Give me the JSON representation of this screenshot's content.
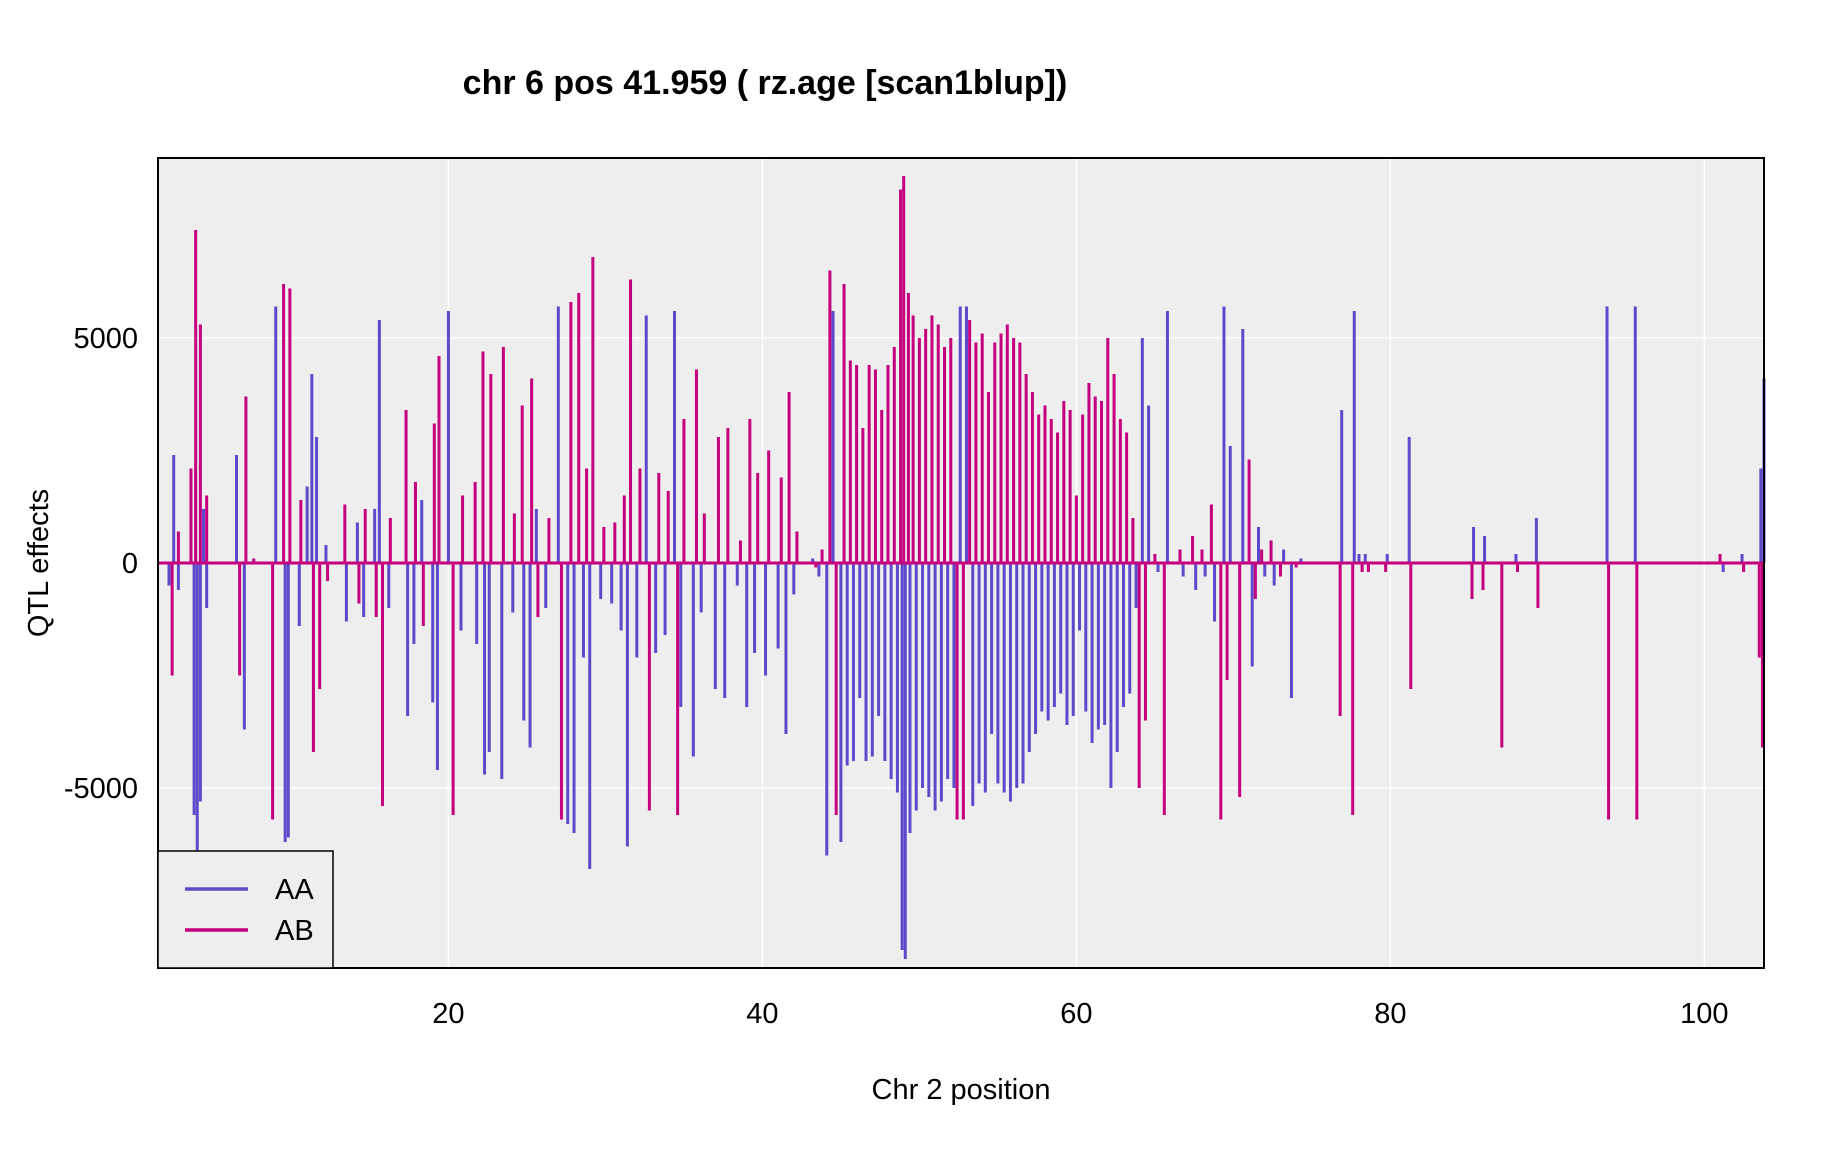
{
  "chart_data": {
    "type": "line",
    "title": "chr 6 pos 41.959 ( rz.age  [scan1blup])",
    "xlabel": "Chr 2 position",
    "ylabel": "QTL effects",
    "xlim": [
      1.5,
      103.8
    ],
    "ylim": [
      -9000,
      9000
    ],
    "x_ticks": [
      20,
      40,
      60,
      80,
      100
    ],
    "x_tick_labels": [
      "20",
      "40",
      "60",
      "80",
      "100"
    ],
    "y_ticks": [
      -5000,
      0,
      5000
    ],
    "y_tick_labels": [
      "-5000",
      "0",
      "5000"
    ],
    "grid": true,
    "legend_position": "bottom-left",
    "colors": {
      "AA": "#5B4BCC",
      "AB": "#C4007F",
      "panel_bg": "#EEEEEE",
      "grid": "#FFFFFF"
    },
    "series": [
      {
        "name": "AA",
        "color": "#5B4BCC",
        "spikes": [
          [
            2.2,
            -500
          ],
          [
            2.5,
            2400
          ],
          [
            2.8,
            -600
          ],
          [
            3.8,
            -5600
          ],
          [
            4.0,
            -6500
          ],
          [
            4.2,
            -5300
          ],
          [
            4.4,
            1200
          ],
          [
            4.6,
            -1000
          ],
          [
            6.5,
            2400
          ],
          [
            7.0,
            -3700
          ],
          [
            9.0,
            5700
          ],
          [
            9.6,
            -6200
          ],
          [
            9.8,
            -6100
          ],
          [
            10.5,
            -1400
          ],
          [
            11.0,
            1700
          ],
          [
            11.3,
            4200
          ],
          [
            11.6,
            2800
          ],
          [
            12.2,
            400
          ],
          [
            13.5,
            -1300
          ],
          [
            14.2,
            900
          ],
          [
            14.6,
            -1200
          ],
          [
            15.3,
            1200
          ],
          [
            15.6,
            5400
          ],
          [
            16.2,
            -1000
          ],
          [
            17.4,
            -3400
          ],
          [
            17.8,
            -1800
          ],
          [
            18.3,
            1400
          ],
          [
            19.0,
            -3100
          ],
          [
            19.3,
            -4600
          ],
          [
            20.0,
            5600
          ],
          [
            20.8,
            -1500
          ],
          [
            21.8,
            -1800
          ],
          [
            22.3,
            -4700
          ],
          [
            22.6,
            -4200
          ],
          [
            23.4,
            -4800
          ],
          [
            24.1,
            -1100
          ],
          [
            24.8,
            -3500
          ],
          [
            25.2,
            -4100
          ],
          [
            25.6,
            1200
          ],
          [
            26.2,
            -1000
          ],
          [
            27.0,
            5700
          ],
          [
            27.6,
            -5800
          ],
          [
            28.0,
            -6000
          ],
          [
            28.6,
            -2100
          ],
          [
            29.0,
            -6800
          ],
          [
            29.7,
            -800
          ],
          [
            30.4,
            -900
          ],
          [
            31.0,
            -1500
          ],
          [
            31.4,
            -6300
          ],
          [
            32.0,
            -2100
          ],
          [
            32.6,
            5500
          ],
          [
            33.2,
            -2000
          ],
          [
            33.8,
            -1600
          ],
          [
            34.4,
            5600
          ],
          [
            34.8,
            -3200
          ],
          [
            35.6,
            -4300
          ],
          [
            36.1,
            -1100
          ],
          [
            37.0,
            -2800
          ],
          [
            37.6,
            -3000
          ],
          [
            38.4,
            -500
          ],
          [
            39.0,
            -3200
          ],
          [
            39.5,
            -2000
          ],
          [
            40.2,
            -2500
          ],
          [
            41.0,
            -1900
          ],
          [
            41.5,
            -3800
          ],
          [
            42.0,
            -700
          ],
          [
            43.2,
            100
          ],
          [
            43.6,
            -300
          ],
          [
            44.1,
            -6500
          ],
          [
            44.5,
            5600
          ],
          [
            45.0,
            -6200
          ],
          [
            45.4,
            -4500
          ],
          [
            45.8,
            -4400
          ],
          [
            46.2,
            -3000
          ],
          [
            46.6,
            -4400
          ],
          [
            47.0,
            -4300
          ],
          [
            47.4,
            -3400
          ],
          [
            47.8,
            -4400
          ],
          [
            48.2,
            -4800
          ],
          [
            48.6,
            -5100
          ],
          [
            48.9,
            -8600
          ],
          [
            49.1,
            -8800
          ],
          [
            49.4,
            -6000
          ],
          [
            49.8,
            -5500
          ],
          [
            50.2,
            -5000
          ],
          [
            50.6,
            -5200
          ],
          [
            51.0,
            -5500
          ],
          [
            51.4,
            -5300
          ],
          [
            51.8,
            -4800
          ],
          [
            52.2,
            -5000
          ],
          [
            52.6,
            5700
          ],
          [
            53.0,
            5700
          ],
          [
            53.4,
            -5400
          ],
          [
            53.8,
            -4900
          ],
          [
            54.2,
            -5100
          ],
          [
            54.6,
            -3800
          ],
          [
            55.0,
            -4900
          ],
          [
            55.4,
            -5100
          ],
          [
            55.8,
            -5300
          ],
          [
            56.2,
            -5000
          ],
          [
            56.6,
            -4900
          ],
          [
            57.0,
            -4200
          ],
          [
            57.4,
            -3800
          ],
          [
            57.8,
            -3300
          ],
          [
            58.2,
            -3500
          ],
          [
            58.6,
            -3200
          ],
          [
            59.0,
            -2900
          ],
          [
            59.4,
            -3600
          ],
          [
            59.8,
            -3400
          ],
          [
            60.2,
            -1500
          ],
          [
            60.6,
            -3300
          ],
          [
            61.0,
            -4000
          ],
          [
            61.4,
            -3700
          ],
          [
            61.8,
            -3600
          ],
          [
            62.2,
            -5000
          ],
          [
            62.6,
            -4200
          ],
          [
            63.0,
            -3200
          ],
          [
            63.4,
            -2900
          ],
          [
            63.8,
            -1000
          ],
          [
            64.2,
            5000
          ],
          [
            64.6,
            3500
          ],
          [
            65.2,
            -200
          ],
          [
            65.8,
            5600
          ],
          [
            66.8,
            -300
          ],
          [
            67.6,
            -600
          ],
          [
            68.2,
            -300
          ],
          [
            68.8,
            -1300
          ],
          [
            69.4,
            5700
          ],
          [
            69.8,
            2600
          ],
          [
            70.6,
            5200
          ],
          [
            71.2,
            -2300
          ],
          [
            71.6,
            800
          ],
          [
            72.0,
            -300
          ],
          [
            72.6,
            -500
          ],
          [
            73.2,
            300
          ],
          [
            73.7,
            -3000
          ],
          [
            74.3,
            100
          ],
          [
            76.9,
            3400
          ],
          [
            77.7,
            5600
          ],
          [
            78.0,
            200
          ],
          [
            78.4,
            200
          ],
          [
            79.8,
            200
          ],
          [
            81.2,
            2800
          ],
          [
            85.3,
            800
          ],
          [
            86.0,
            600
          ],
          [
            88.0,
            200
          ],
          [
            89.3,
            1000
          ],
          [
            93.8,
            5700
          ],
          [
            95.6,
            5700
          ],
          [
            101.2,
            -200
          ],
          [
            102.4,
            200
          ],
          [
            103.6,
            2100
          ],
          [
            103.8,
            4100
          ]
        ]
      },
      {
        "name": "AB",
        "color": "#C4007F",
        "spikes": [
          [
            2.4,
            -2500
          ],
          [
            2.8,
            700
          ],
          [
            3.6,
            2100
          ],
          [
            3.9,
            7400
          ],
          [
            4.2,
            5300
          ],
          [
            4.6,
            1500
          ],
          [
            6.7,
            -2500
          ],
          [
            7.1,
            3700
          ],
          [
            7.6,
            100
          ],
          [
            8.8,
            -5700
          ],
          [
            9.5,
            6200
          ],
          [
            9.9,
            6100
          ],
          [
            10.6,
            1400
          ],
          [
            11.4,
            -4200
          ],
          [
            11.8,
            -2800
          ],
          [
            12.3,
            -400
          ],
          [
            13.4,
            1300
          ],
          [
            14.3,
            -900
          ],
          [
            14.7,
            1200
          ],
          [
            15.4,
            -1200
          ],
          [
            15.8,
            -5400
          ],
          [
            16.3,
            1000
          ],
          [
            17.3,
            3400
          ],
          [
            17.9,
            1800
          ],
          [
            18.4,
            -1400
          ],
          [
            19.1,
            3100
          ],
          [
            19.4,
            4600
          ],
          [
            20.3,
            -5600
          ],
          [
            20.9,
            1500
          ],
          [
            21.7,
            1800
          ],
          [
            22.2,
            4700
          ],
          [
            22.7,
            4200
          ],
          [
            23.5,
            4800
          ],
          [
            24.2,
            1100
          ],
          [
            24.7,
            3500
          ],
          [
            25.3,
            4100
          ],
          [
            25.7,
            -1200
          ],
          [
            26.4,
            1000
          ],
          [
            27.2,
            -5700
          ],
          [
            27.8,
            5800
          ],
          [
            28.3,
            6000
          ],
          [
            28.8,
            2100
          ],
          [
            29.2,
            6800
          ],
          [
            29.9,
            800
          ],
          [
            30.6,
            900
          ],
          [
            31.2,
            1500
          ],
          [
            31.6,
            6300
          ],
          [
            32.2,
            2100
          ],
          [
            32.8,
            -5500
          ],
          [
            33.4,
            2000
          ],
          [
            34.0,
            1600
          ],
          [
            34.6,
            -5600
          ],
          [
            35.0,
            3200
          ],
          [
            35.8,
            4300
          ],
          [
            36.3,
            1100
          ],
          [
            37.2,
            2800
          ],
          [
            37.8,
            3000
          ],
          [
            38.6,
            500
          ],
          [
            39.2,
            3200
          ],
          [
            39.7,
            2000
          ],
          [
            40.4,
            2500
          ],
          [
            41.2,
            1900
          ],
          [
            41.7,
            3800
          ],
          [
            42.2,
            700
          ],
          [
            43.4,
            -100
          ],
          [
            43.8,
            300
          ],
          [
            44.3,
            6500
          ],
          [
            44.7,
            -5600
          ],
          [
            45.2,
            6200
          ],
          [
            45.6,
            4500
          ],
          [
            46.0,
            4400
          ],
          [
            46.4,
            3000
          ],
          [
            46.8,
            4400
          ],
          [
            47.2,
            4300
          ],
          [
            47.6,
            3400
          ],
          [
            48.0,
            4400
          ],
          [
            48.4,
            4800
          ],
          [
            48.8,
            8300
          ],
          [
            49.0,
            8600
          ],
          [
            49.3,
            6000
          ],
          [
            49.6,
            5500
          ],
          [
            50.0,
            5000
          ],
          [
            50.4,
            5200
          ],
          [
            50.8,
            5500
          ],
          [
            51.2,
            5300
          ],
          [
            51.6,
            4800
          ],
          [
            52.0,
            5000
          ],
          [
            52.4,
            -5700
          ],
          [
            52.8,
            -5700
          ],
          [
            53.2,
            5400
          ],
          [
            53.6,
            4900
          ],
          [
            54.0,
            5100
          ],
          [
            54.4,
            3800
          ],
          [
            54.8,
            4900
          ],
          [
            55.2,
            5100
          ],
          [
            55.6,
            5300
          ],
          [
            56.0,
            5000
          ],
          [
            56.4,
            4900
          ],
          [
            56.8,
            4200
          ],
          [
            57.2,
            3800
          ],
          [
            57.6,
            3300
          ],
          [
            58.0,
            3500
          ],
          [
            58.4,
            3200
          ],
          [
            58.8,
            2900
          ],
          [
            59.2,
            3600
          ],
          [
            59.6,
            3400
          ],
          [
            60.0,
            1500
          ],
          [
            60.4,
            3300
          ],
          [
            60.8,
            4000
          ],
          [
            61.2,
            3700
          ],
          [
            61.6,
            3600
          ],
          [
            62.0,
            5000
          ],
          [
            62.4,
            4200
          ],
          [
            62.8,
            3200
          ],
          [
            63.2,
            2900
          ],
          [
            63.6,
            1000
          ],
          [
            64.0,
            -5000
          ],
          [
            64.4,
            -3500
          ],
          [
            65.0,
            200
          ],
          [
            65.6,
            -5600
          ],
          [
            66.6,
            300
          ],
          [
            67.4,
            600
          ],
          [
            68.0,
            300
          ],
          [
            68.6,
            1300
          ],
          [
            69.2,
            -5700
          ],
          [
            69.6,
            -2600
          ],
          [
            70.4,
            -5200
          ],
          [
            71.0,
            2300
          ],
          [
            71.4,
            -800
          ],
          [
            71.8,
            300
          ],
          [
            72.4,
            500
          ],
          [
            73.0,
            -300
          ],
          [
            74.0,
            -100
          ],
          [
            76.8,
            -3400
          ],
          [
            77.6,
            -5600
          ],
          [
            78.2,
            -200
          ],
          [
            78.6,
            -200
          ],
          [
            79.7,
            -200
          ],
          [
            81.3,
            -2800
          ],
          [
            85.2,
            -800
          ],
          [
            85.9,
            -600
          ],
          [
            87.1,
            -4100
          ],
          [
            88.1,
            -200
          ],
          [
            89.4,
            -1000
          ],
          [
            93.9,
            -5700
          ],
          [
            95.7,
            -5700
          ],
          [
            101.0,
            200
          ],
          [
            102.5,
            -200
          ],
          [
            103.5,
            -2100
          ],
          [
            103.7,
            -4100
          ]
        ]
      }
    ]
  }
}
